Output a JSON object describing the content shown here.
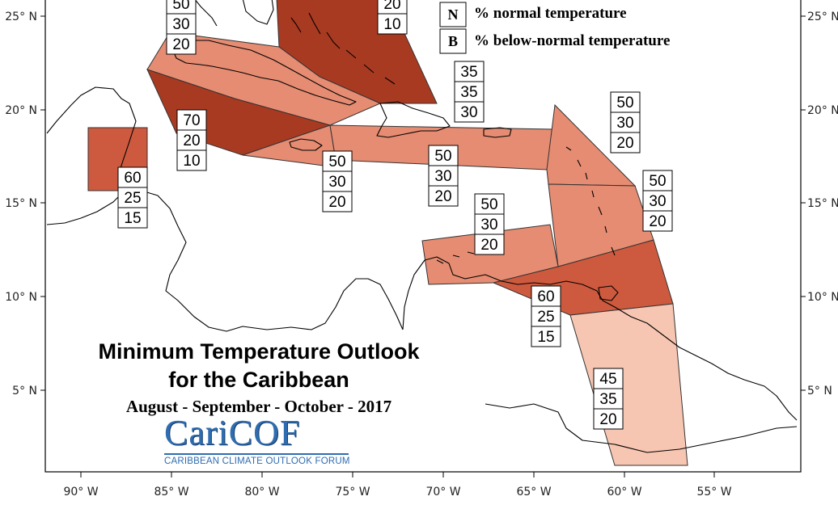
{
  "legend": {
    "rows": [
      {
        "letter": "N",
        "text": "% normal temperature"
      },
      {
        "letter": "B",
        "text": "% below-normal temperature"
      }
    ]
  },
  "title": {
    "line1": "Minimum Temperature Outlook",
    "line2": "for the Caribbean",
    "period": "August - September - October - 2017"
  },
  "logo": {
    "wordmark": "CariCOF",
    "tagline": "CARIBBEAN CLIMATE OUTLOOK FORUM"
  },
  "axes": {
    "lon_labels": [
      "90° W",
      "85° W",
      "80° W",
      "75° W",
      "70° W",
      "65° W",
      "60° W",
      "55° W"
    ],
    "lat_labels": [
      "25° N",
      "20° N",
      "15° N",
      "10° N",
      "5° N"
    ]
  },
  "colors": {
    "dark": "#a83a22",
    "medium_dark": "#cd5a3e",
    "medium": "#e58c72",
    "light": "#f7c6b2",
    "coast": "#000000"
  },
  "regions": [
    {
      "id": "bahamas",
      "tone": "dark"
    },
    {
      "id": "cuba",
      "tone": "medium"
    },
    {
      "id": "cayman-western-cuba",
      "tone": "dark"
    },
    {
      "id": "jamaica",
      "tone": "medium"
    },
    {
      "id": "hispaniola-puerto-rico",
      "tone": "medium"
    },
    {
      "id": "belize",
      "tone": "medium_dark"
    },
    {
      "id": "leeward-islands",
      "tone": "medium"
    },
    {
      "id": "windward-islands",
      "tone": "medium"
    },
    {
      "id": "abc-islands",
      "tone": "medium"
    },
    {
      "id": "trinidad-tobago",
      "tone": "medium_dark"
    },
    {
      "id": "guianas",
      "tone": "light"
    }
  ],
  "probability_boxes": [
    {
      "id": "box-bahamas-west",
      "values": [
        "50",
        "30",
        "20"
      ]
    },
    {
      "id": "box-bahamas-east",
      "values": [
        "20",
        "10"
      ]
    },
    {
      "id": "box-turks-caicos",
      "values": [
        "35",
        "35",
        "30"
      ]
    },
    {
      "id": "box-cayman",
      "values": [
        "70",
        "20",
        "10"
      ]
    },
    {
      "id": "box-belize",
      "values": [
        "60",
        "25",
        "15"
      ]
    },
    {
      "id": "box-jamaica",
      "values": [
        "50",
        "30",
        "20"
      ]
    },
    {
      "id": "box-hispaniola",
      "values": [
        "50",
        "30",
        "20"
      ]
    },
    {
      "id": "box-abc",
      "values": [
        "50",
        "30",
        "20"
      ]
    },
    {
      "id": "box-leewards",
      "values": [
        "50",
        "30",
        "20"
      ]
    },
    {
      "id": "box-windwards",
      "values": [
        "50",
        "30",
        "20"
      ]
    },
    {
      "id": "box-trinidad",
      "values": [
        "60",
        "25",
        "15"
      ]
    },
    {
      "id": "box-guianas",
      "values": [
        "45",
        "35",
        "20"
      ]
    }
  ]
}
